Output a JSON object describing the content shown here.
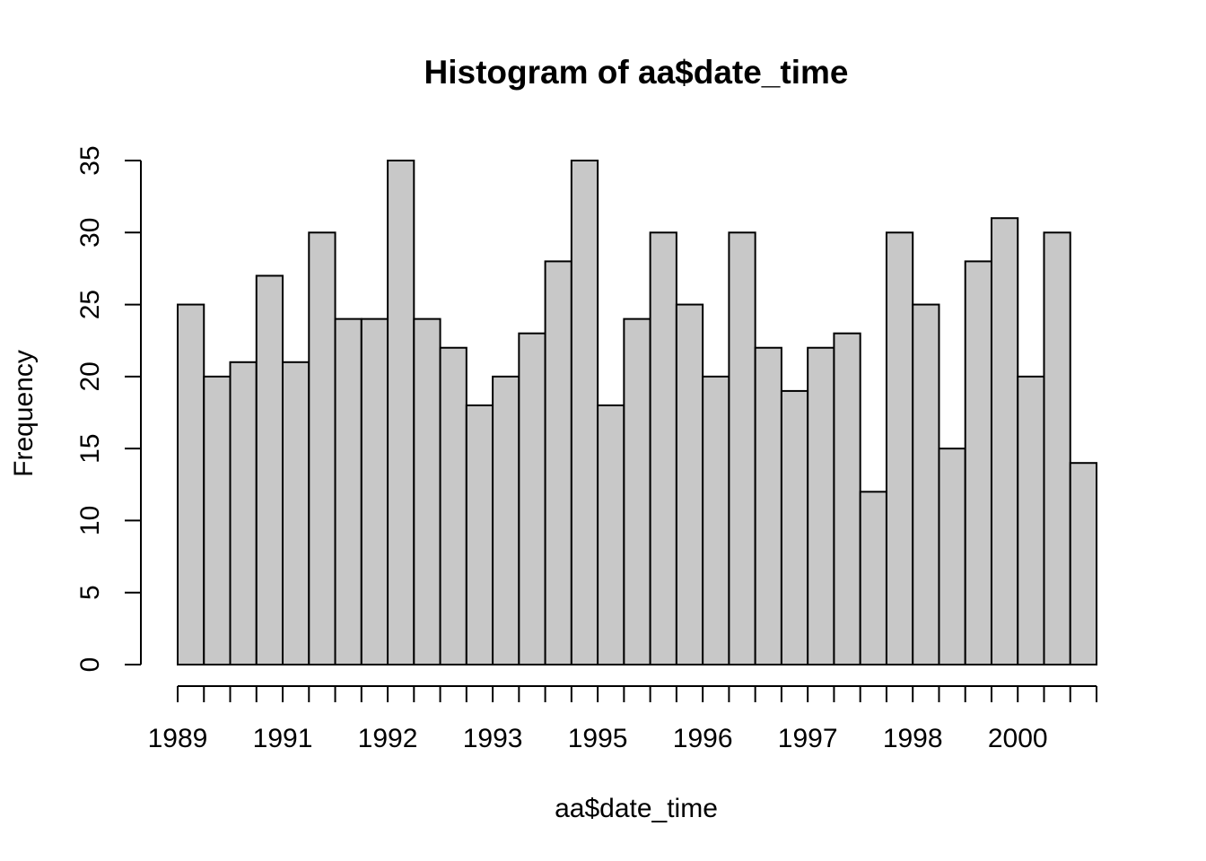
{
  "chart_data": {
    "type": "bar",
    "title": "Histogram of aa$date_time",
    "xlabel": "aa$date_time",
    "ylabel": "Frequency",
    "ylim": [
      0,
      35
    ],
    "y_ticks": [
      0,
      5,
      10,
      15,
      20,
      25,
      30,
      35
    ],
    "x_tick_labels": [
      "1989",
      "1991",
      "1992",
      "1993",
      "1995",
      "1996",
      "1997",
      "1998",
      "2000"
    ],
    "bin_count": 35,
    "values": [
      25,
      20,
      21,
      27,
      21,
      30,
      24,
      24,
      35,
      24,
      22,
      18,
      20,
      23,
      28,
      35,
      18,
      24,
      30,
      25,
      20,
      30,
      22,
      19,
      22,
      23,
      12,
      30,
      25,
      15,
      28,
      31,
      20,
      30,
      14
    ],
    "bar_color": "#c8c8c8",
    "grid": false,
    "legend": "none"
  }
}
